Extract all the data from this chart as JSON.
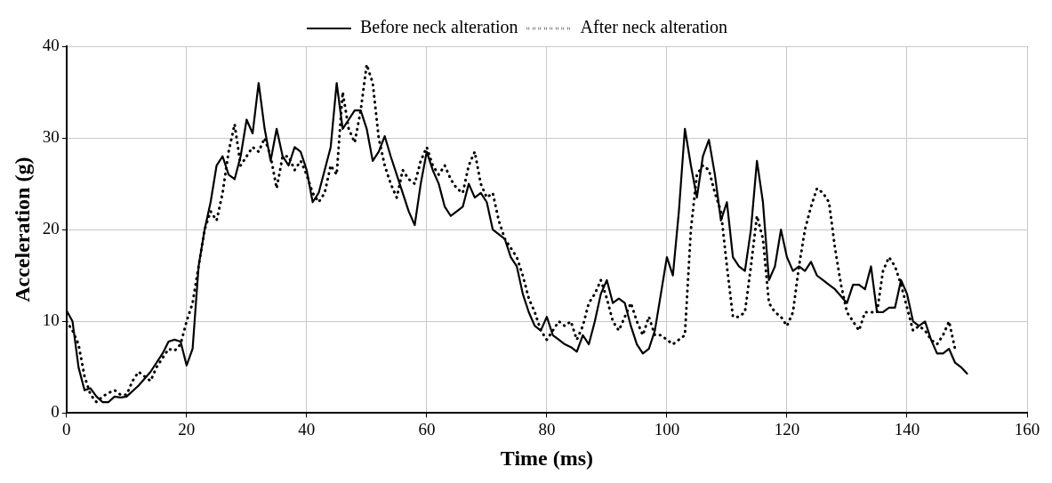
{
  "chart_data": {
    "type": "line",
    "xlabel": "Time (ms)",
    "ylabel": "Acceleration (g)",
    "xlim": [
      0,
      160
    ],
    "xticks": [
      0,
      20,
      40,
      60,
      80,
      100,
      120,
      140,
      160
    ],
    "ylim": [
      0,
      40
    ],
    "yticks": [
      0,
      10,
      20,
      30,
      40
    ],
    "grid": true,
    "legend": "top",
    "marker": "none",
    "series": [
      {
        "name": "Before neck alteration",
        "color": "#000000",
        "line_style": "solid",
        "x": [
          0,
          1,
          2,
          3,
          4,
          5,
          6,
          7,
          8,
          9,
          10,
          12,
          14,
          16,
          17,
          18,
          19,
          20,
          21,
          22,
          23,
          24,
          25,
          26,
          27,
          28,
          29,
          30,
          31,
          32,
          33,
          34,
          35,
          36,
          37,
          38,
          39,
          40,
          41,
          42,
          43,
          44,
          45,
          46,
          47,
          48,
          49,
          50,
          51,
          52,
          53,
          54,
          55,
          57,
          58,
          59,
          60,
          61,
          62,
          63,
          64,
          65,
          66,
          67,
          68,
          69,
          70,
          71,
          72,
          73,
          74,
          75,
          76,
          77,
          78,
          79,
          80,
          81,
          82,
          83,
          84,
          85,
          86,
          87,
          88,
          89,
          90,
          91,
          92,
          93,
          94,
          95,
          96,
          97,
          98,
          99,
          100,
          101,
          102,
          103,
          104,
          105,
          106,
          107,
          108,
          109,
          110,
          111,
          112,
          113,
          114,
          115,
          116,
          117,
          118,
          119,
          120,
          121,
          122,
          123,
          124,
          125,
          126,
          127,
          128,
          130,
          131,
          132,
          133,
          134,
          135,
          136,
          137,
          138,
          139,
          140,
          141,
          142,
          143,
          144,
          145,
          146,
          147,
          148,
          149,
          150
        ],
        "values": [
          11.2,
          10,
          5,
          2.5,
          2.7,
          1.8,
          1.2,
          1.2,
          1.8,
          1.7,
          1.8,
          3,
          4.5,
          6.5,
          7.8,
          8,
          7.8,
          5.2,
          7,
          16,
          20,
          23,
          27,
          28,
          26,
          25.5,
          28,
          32,
          30.5,
          36,
          31,
          27.5,
          31,
          28,
          27,
          29,
          28.5,
          26.5,
          23,
          24,
          26.5,
          29,
          36,
          31,
          32,
          33,
          33,
          31,
          27.5,
          28.5,
          30.2,
          28,
          26,
          22,
          20.5,
          25,
          28.5,
          26.5,
          25,
          22.5,
          21.5,
          22,
          22.5,
          25,
          23.5,
          24,
          23,
          20,
          19.5,
          19,
          17,
          16,
          13,
          11,
          9.5,
          9,
          10.5,
          8.5,
          8,
          7.5,
          7.2,
          6.7,
          8.5,
          7.5,
          10,
          13,
          14.5,
          12,
          12.5,
          12,
          9.5,
          7.5,
          6.5,
          7,
          9,
          13,
          17,
          15,
          22,
          31,
          27,
          23.5,
          28,
          29.8,
          26,
          21,
          23,
          17,
          16,
          15.5,
          20,
          27.5,
          23,
          14.5,
          16,
          20,
          17,
          15.5,
          16,
          15.5,
          16.5,
          15,
          14.5,
          14,
          13.5,
          12,
          14,
          14,
          13.5,
          16,
          11,
          11,
          11.5,
          11.5,
          14.5,
          13,
          10,
          9.5,
          10,
          8,
          6.5,
          6.5,
          7,
          5.5,
          5,
          4.3
        ]
      },
      {
        "name": "After neck alteration",
        "color": "#000000",
        "line_style": "dotted",
        "x": [
          0,
          1,
          2,
          3,
          4,
          5,
          6,
          7,
          8,
          9,
          10,
          11,
          12,
          13,
          14,
          15,
          16,
          17,
          18,
          19,
          20,
          21,
          22,
          23,
          24,
          25,
          26,
          27,
          28,
          29,
          30,
          31,
          32,
          33,
          34,
          35,
          36,
          37,
          38,
          39,
          40,
          41,
          42,
          43,
          44,
          45,
          46,
          47,
          48,
          49,
          50,
          51,
          52,
          53,
          54,
          55,
          56,
          57,
          58,
          59,
          60,
          61,
          62,
          63,
          64,
          65,
          66,
          67,
          68,
          69,
          70,
          71,
          72,
          73,
          74,
          75,
          76,
          77,
          78,
          79,
          80,
          81,
          82,
          83,
          84,
          85,
          86,
          87,
          88,
          89,
          90,
          91,
          92,
          93,
          94,
          95,
          96,
          97,
          98,
          99,
          100,
          101,
          102,
          103,
          104,
          105,
          106,
          107,
          108,
          109,
          110,
          111,
          112,
          113,
          114,
          115,
          116,
          117,
          118,
          119,
          120,
          121,
          122,
          123,
          124,
          125,
          126,
          127,
          128,
          129,
          130,
          131,
          132,
          133,
          134,
          135,
          136,
          137,
          138,
          139,
          140,
          141,
          142,
          143,
          144,
          145,
          146,
          147,
          148
        ],
        "values": [
          10,
          9,
          7.5,
          4,
          2,
          1.2,
          1.8,
          2.2,
          2.5,
          2,
          2,
          3.5,
          4.5,
          4,
          3.5,
          5,
          6,
          7,
          6.8,
          7.5,
          10,
          12,
          16,
          20,
          22,
          21,
          24,
          28.5,
          31.5,
          27,
          28,
          29,
          28.5,
          30,
          28,
          24.5,
          28,
          28,
          26.5,
          27.5,
          26,
          24,
          23,
          24,
          27,
          26,
          35,
          31,
          29.5,
          33,
          38,
          36,
          30,
          27,
          25,
          23.5,
          26.5,
          25.5,
          25,
          27.5,
          29,
          27,
          26,
          27,
          25.5,
          24.5,
          24,
          27,
          28.5,
          25,
          23.5,
          24,
          21,
          19,
          18,
          17,
          15,
          12.5,
          11,
          9,
          8,
          9,
          10,
          9.5,
          10,
          8,
          9.5,
          12,
          13,
          14.5,
          12.5,
          10,
          9,
          10.5,
          12,
          10,
          8.5,
          10.5,
          8.5,
          8.5,
          8,
          7.5,
          8,
          8.5,
          20,
          26,
          27,
          26.5,
          24,
          22,
          16,
          10.5,
          10.5,
          11,
          16,
          21.5,
          19,
          12,
          11,
          10.5,
          9.5,
          11,
          16,
          20,
          22.5,
          24.5,
          24,
          23,
          18,
          14,
          11,
          10,
          9,
          11,
          11,
          11,
          15.5,
          17,
          16,
          14,
          11.5,
          9,
          9.5,
          9,
          8,
          7.5,
          8.5,
          10,
          7
        ]
      }
    ]
  }
}
